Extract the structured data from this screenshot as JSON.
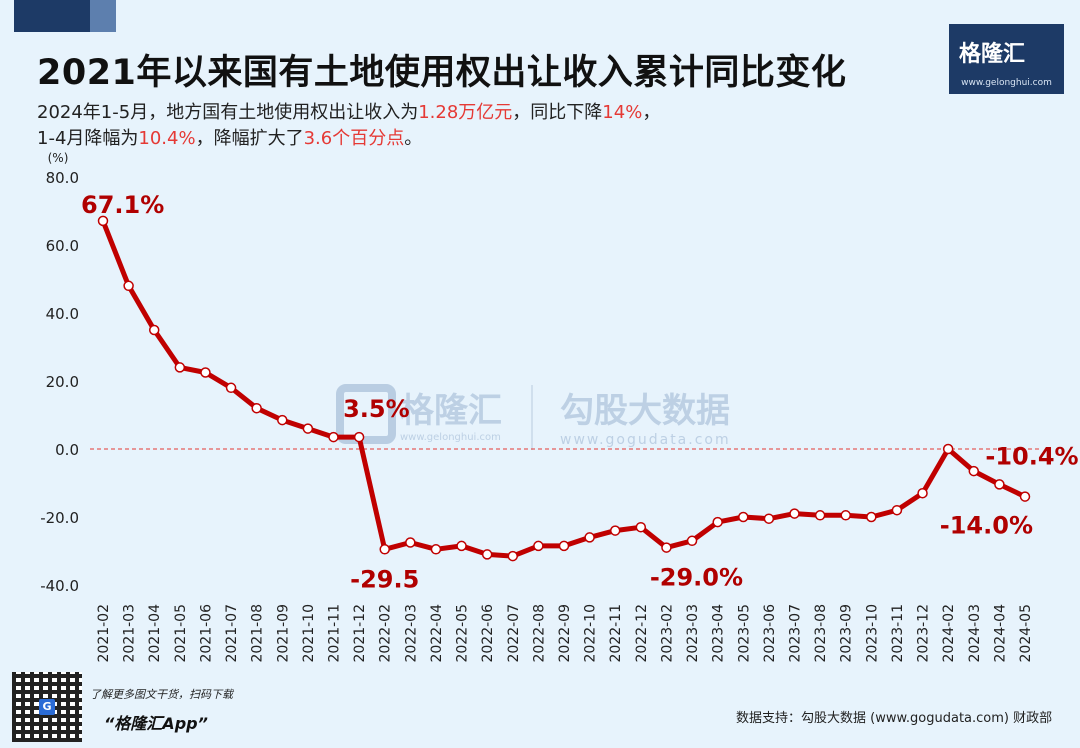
{
  "header": {
    "title": "2021年以来国有土地使用权出让收入累计同比变化",
    "subtitle_line1": [
      {
        "text": "2024年1-5月，地方国有土地使用权出让收入为",
        "hl": false
      },
      {
        "text": "1.28万亿元",
        "hl": true
      },
      {
        "text": "，同比下降",
        "hl": false
      },
      {
        "text": "14%",
        "hl": true
      },
      {
        "text": "，",
        "hl": false
      }
    ],
    "subtitle_line2": [
      {
        "text": "1-4月降幅为",
        "hl": false
      },
      {
        "text": "10.4%",
        "hl": true
      },
      {
        "text": "，降幅扩大了",
        "hl": false
      },
      {
        "text": "3.6个百分点",
        "hl": true
      },
      {
        "text": "。",
        "hl": false
      }
    ]
  },
  "logo": {
    "name": "格隆汇",
    "url": "www.gelonghui.com"
  },
  "watermark": {
    "left_name": "格隆汇",
    "left_url": "www.gelonghui.com",
    "right_name": "勾股大数据",
    "right_url": "www.gogudata.com"
  },
  "colors": {
    "line": "#c00000",
    "accent": "#e53935",
    "header_bg": "#1d3a66",
    "zero_line": "#e53935"
  },
  "chart_data": {
    "type": "line",
    "ylabel": "(%)",
    "ylim": [
      -40,
      80
    ],
    "yticks": [
      "80.0",
      "60.0",
      "40.0",
      "20.0",
      "0.0",
      "-20.0",
      "-40.0"
    ],
    "ytick_values": [
      80,
      60,
      40,
      20,
      0,
      -20,
      -40
    ],
    "grid": false,
    "categories": [
      "2021-02",
      "2021-03",
      "2021-04",
      "2021-05",
      "2021-06",
      "2021-07",
      "2021-08",
      "2021-09",
      "2021-10",
      "2021-11",
      "2021-12",
      "2022-02",
      "2022-03",
      "2022-04",
      "2022-05",
      "2022-06",
      "2022-07",
      "2022-08",
      "2022-09",
      "2022-10",
      "2022-11",
      "2022-12",
      "2023-02",
      "2023-03",
      "2023-04",
      "2023-05",
      "2023-06",
      "2023-07",
      "2023-08",
      "2023-09",
      "2023-10",
      "2023-11",
      "2023-12",
      "2024-02",
      "2024-03",
      "2024-04",
      "2024-05"
    ],
    "series": [
      {
        "values": [
          67.1,
          48.0,
          35.0,
          24.0,
          22.5,
          18.0,
          12.0,
          8.5,
          6.0,
          3.5,
          3.5,
          -29.5,
          -27.5,
          -29.5,
          -28.5,
          -31.0,
          -31.5,
          -28.5,
          -28.5,
          -26.0,
          -24.0,
          -23.0,
          -29.0,
          -27.0,
          -21.5,
          -20.0,
          -20.5,
          -19.0,
          -19.5,
          -19.5,
          -20.0,
          -18.0,
          -13.0,
          0.0,
          -6.5,
          -10.4,
          -14.0
        ]
      }
    ],
    "annotations": [
      {
        "index": 0,
        "label": "67.1%"
      },
      {
        "index": 10,
        "label": "3.5%"
      },
      {
        "index": 11,
        "label": "-29.5"
      },
      {
        "index": 22,
        "label": "-29.0%"
      },
      {
        "index": 35,
        "label": "-10.4%"
      },
      {
        "index": 36,
        "label": "-14.0%"
      }
    ]
  },
  "footer": {
    "app_hint": "了解更多图文干货，扫码下载",
    "app_name": "“格隆汇App”",
    "qr_badge": "G",
    "source": "数据支持：勾股大数据 (www.gogudata.com) 财政部"
  }
}
